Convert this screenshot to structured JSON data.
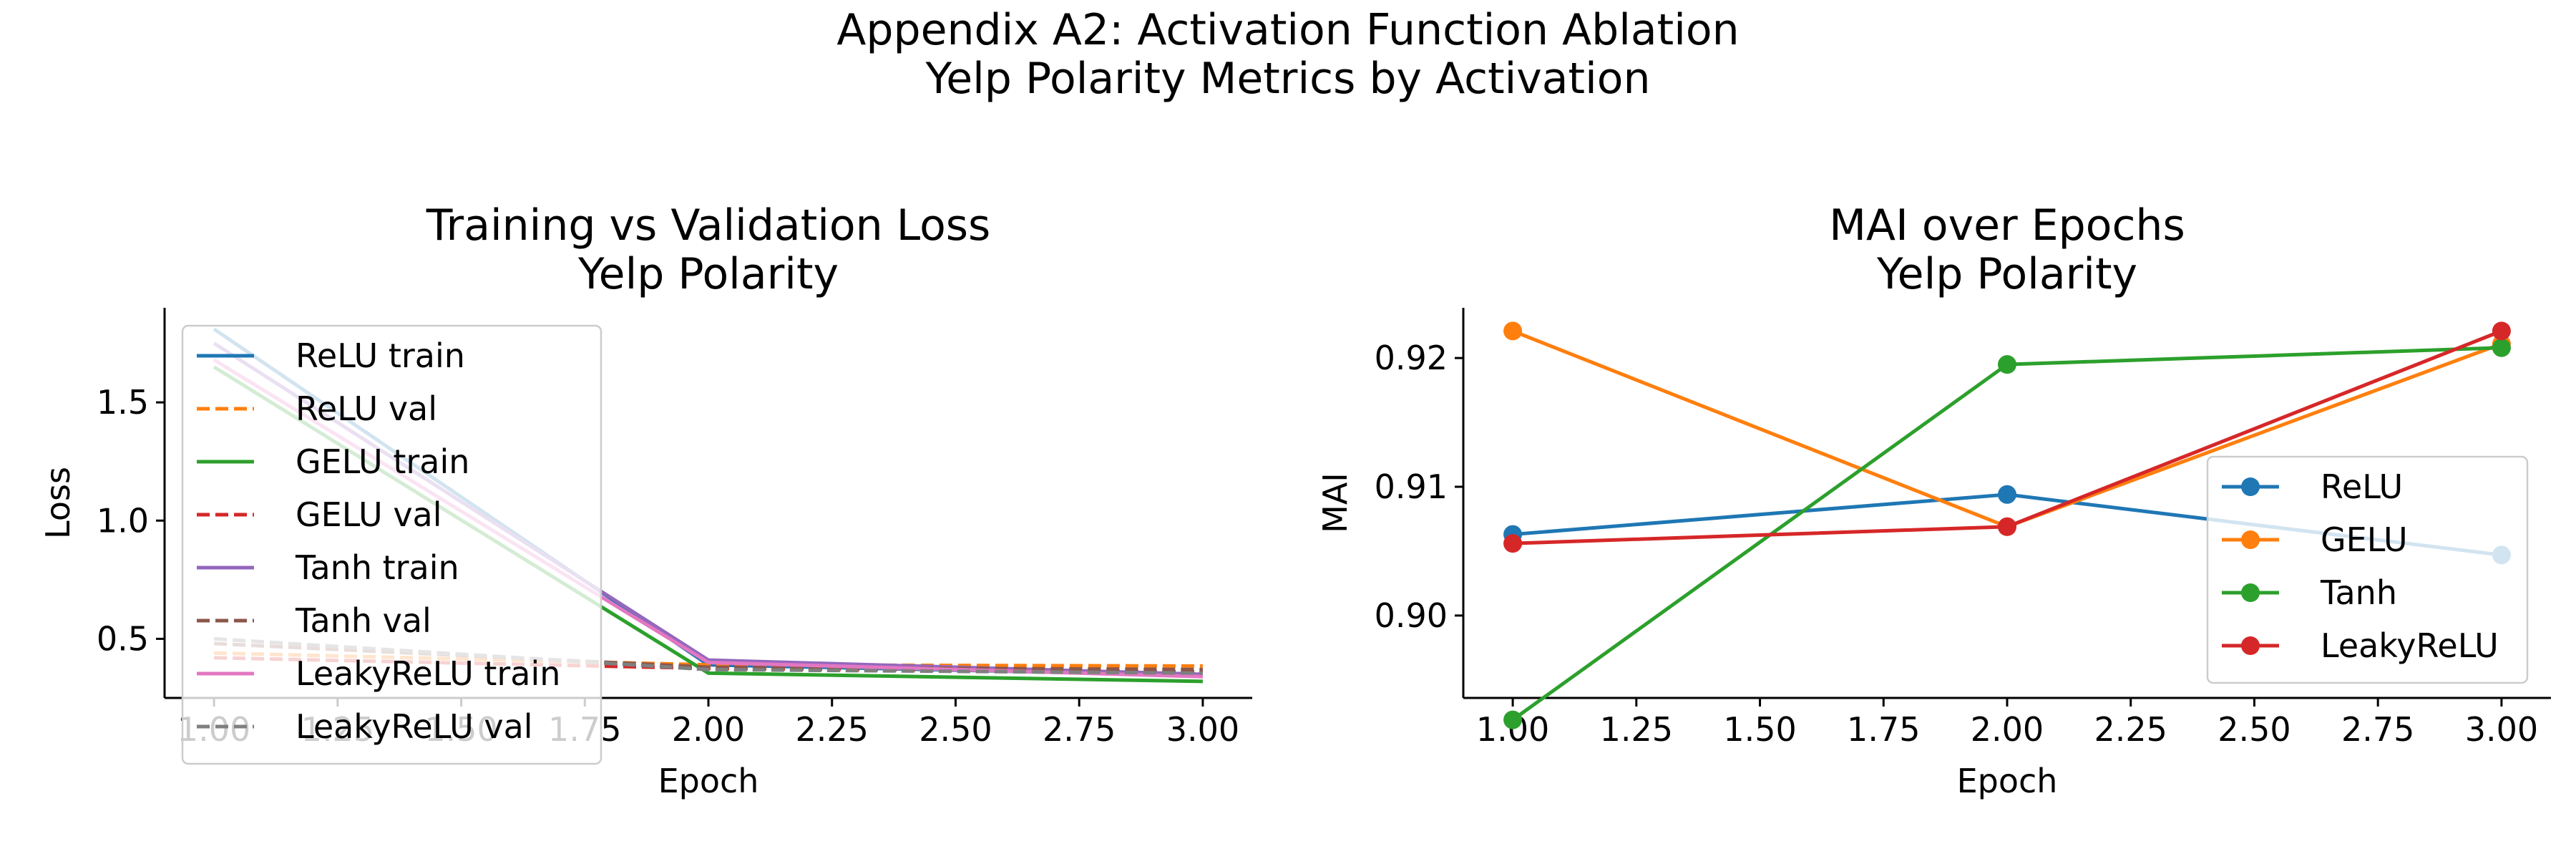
{
  "suptitle": [
    "Appendix A2: Activation Function Ablation",
    "Yelp Polarity Metrics by Activation"
  ],
  "chart_data": [
    {
      "type": "line",
      "title": [
        "Training vs Validation Loss",
        "Yelp Polarity"
      ],
      "xlabel": "Epoch",
      "ylabel": "Loss",
      "x": [
        1,
        2,
        3
      ],
      "xlim": [
        0.9,
        3.1
      ],
      "ylim": [
        0.25,
        1.9
      ],
      "xticks": [
        "1.00",
        "1.25",
        "1.50",
        "1.75",
        "2.00",
        "2.25",
        "2.50",
        "2.75",
        "3.00"
      ],
      "yticks": [
        "0.5",
        "1.0",
        "1.5"
      ],
      "grid": false,
      "legend_position": "upper-left",
      "series": [
        {
          "name": "ReLU train",
          "color": "#1f77b4",
          "style": "solid",
          "values": [
            1.81,
            0.39,
            0.345
          ]
        },
        {
          "name": "ReLU val",
          "color": "#ff7f0e",
          "style": "dashed",
          "values": [
            0.44,
            0.39,
            0.385
          ]
        },
        {
          "name": "GELU train",
          "color": "#2ca02c",
          "style": "solid",
          "values": [
            1.65,
            0.355,
            0.32
          ]
        },
        {
          "name": "GELU val",
          "color": "#d62728",
          "style": "dashed",
          "values": [
            0.42,
            0.375,
            0.36
          ]
        },
        {
          "name": "Tanh train",
          "color": "#9467bd",
          "style": "solid",
          "values": [
            1.75,
            0.41,
            0.35
          ]
        },
        {
          "name": "Tanh val",
          "color": "#8c564b",
          "style": "dashed",
          "values": [
            0.48,
            0.38,
            0.37
          ]
        },
        {
          "name": "LeakyReLU train",
          "color": "#e377c2",
          "style": "solid",
          "values": [
            1.68,
            0.4,
            0.34
          ]
        },
        {
          "name": "LeakyReLU val",
          "color": "#7f7f7f",
          "style": "dashed",
          "values": [
            0.5,
            0.37,
            0.355
          ]
        }
      ]
    },
    {
      "type": "line",
      "title": [
        "MAI over Epochs",
        "Yelp Polarity"
      ],
      "xlabel": "Epoch",
      "ylabel": "MAI",
      "x": [
        1,
        2,
        3
      ],
      "xlim": [
        0.9,
        3.1
      ],
      "ylim": [
        0.8936,
        0.9239
      ],
      "xticks": [
        "1.00",
        "1.25",
        "1.50",
        "1.75",
        "2.00",
        "2.25",
        "2.50",
        "2.75",
        "3.00"
      ],
      "yticks": [
        "0.90",
        "0.91",
        "0.92"
      ],
      "grid": false,
      "legend_position": "lower-right",
      "series": [
        {
          "name": "ReLU",
          "color": "#1f77b4",
          "style": "solid",
          "values": [
            0.9063,
            0.9094,
            0.9047
          ]
        },
        {
          "name": "GELU",
          "color": "#ff7f0e",
          "style": "solid",
          "values": [
            0.9221,
            0.9069,
            0.9211
          ]
        },
        {
          "name": "Tanh",
          "color": "#2ca02c",
          "style": "solid",
          "values": [
            0.8919,
            0.9195,
            0.9208
          ]
        },
        {
          "name": "LeakyReLU",
          "color": "#d62728",
          "style": "solid",
          "values": [
            0.9056,
            0.9069,
            0.9221
          ]
        }
      ]
    }
  ]
}
